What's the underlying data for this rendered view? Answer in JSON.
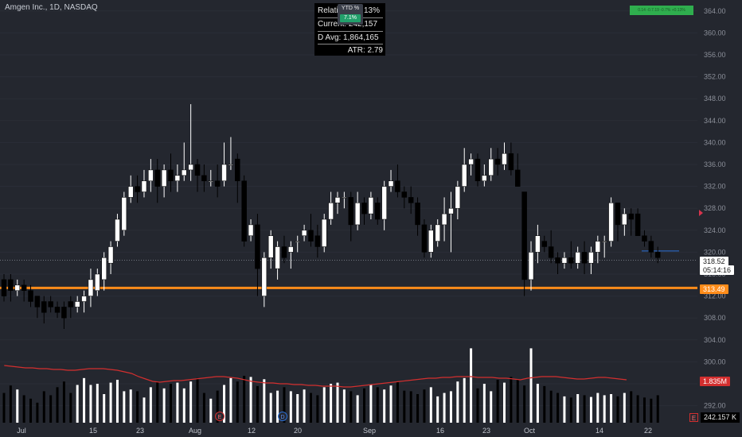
{
  "symbol": {
    "title": "Amgen Inc., 1D, NASDAQ"
  },
  "stats": {
    "relative": "Relati",
    "relative_value": "13%",
    "current": "Current: 242,157",
    "avg": "D Avg: 1,864,165",
    "atr": "ATR: 2.79"
  },
  "ytd": {
    "label": "YTD %",
    "value": "7.1%"
  },
  "perf_badge": "0.14  -0.7.19  -0.7%  +0.13%",
  "tags": {
    "last_price": "318.52",
    "countdown": "05:14:16",
    "orange_level": "313.49",
    "volume_avg": "1.835M",
    "volume_current": "242.157 K",
    "earnings_marker": "E",
    "dividend_marker": "D"
  },
  "colors": {
    "background": "#24272f",
    "bull_candle": "#ffffff",
    "bear_candle": "#000000",
    "orange_line": "#ff8c1a",
    "volume_ma": "#d32f2f",
    "axis_text": "#8b8f99",
    "accent_green": "#2fae4e"
  },
  "chart_data": {
    "type": "candlestick",
    "title": "Amgen Inc., 1D, NASDAQ",
    "ylim": [
      288,
      366
    ],
    "y_ticks": [
      364.0,
      360.0,
      356.0,
      352.0,
      348.0,
      344.0,
      340.0,
      336.0,
      332.0,
      328.0,
      324.0,
      320.0,
      316.0,
      312.0,
      308.0,
      304.0,
      300.0,
      296.0,
      292.0
    ],
    "x_labels": [
      "Jul",
      "15",
      "23",
      "Aug",
      "12",
      "20",
      "Sep",
      "16",
      "23",
      "Oct",
      "14",
      "22"
    ],
    "last_price": 318.52,
    "horizontal_level": 313.49,
    "candles": [
      [
        315,
        312,
        316,
        311
      ],
      [
        315,
        313,
        316,
        311
      ],
      [
        313,
        314,
        315,
        312
      ],
      [
        314,
        313,
        315,
        311
      ],
      [
        313,
        311,
        314,
        310
      ],
      [
        312,
        310,
        312,
        308
      ],
      [
        311,
        309,
        312,
        307
      ],
      [
        311,
        310,
        312,
        309
      ],
      [
        310,
        309,
        311,
        308
      ],
      [
        310,
        308,
        311,
        306
      ],
      [
        311,
        310,
        312,
        308
      ],
      [
        310,
        311,
        312,
        309
      ],
      [
        311,
        312,
        313,
        309
      ],
      [
        312,
        315,
        317,
        310
      ],
      [
        313,
        316,
        317,
        312
      ],
      [
        315,
        319,
        320,
        313
      ],
      [
        318,
        321,
        322,
        316
      ],
      [
        322,
        326,
        327,
        321
      ],
      [
        324,
        330,
        331,
        323
      ],
      [
        330,
        332,
        334,
        329
      ],
      [
        332,
        331,
        334,
        329
      ],
      [
        331,
        333,
        335,
        330
      ],
      [
        333,
        335,
        337,
        331
      ],
      [
        335,
        332,
        337,
        329
      ],
      [
        332,
        335,
        336,
        330
      ],
      [
        335,
        333,
        338,
        331
      ],
      [
        333,
        334,
        336,
        331
      ],
      [
        334,
        335,
        340,
        333
      ],
      [
        335,
        336,
        347,
        333
      ],
      [
        336,
        334,
        337,
        331
      ],
      [
        334,
        333,
        336,
        331
      ],
      [
        333,
        333,
        335,
        332
      ],
      [
        333,
        332,
        336,
        330
      ],
      [
        333,
        336,
        340,
        332
      ],
      [
        336,
        336,
        341,
        335
      ],
      [
        337,
        333,
        338,
        329
      ],
      [
        333,
        322,
        334,
        321
      ],
      [
        323,
        325,
        326,
        322
      ],
      [
        325,
        317,
        327,
        312
      ],
      [
        312,
        319,
        320,
        310
      ],
      [
        319,
        323,
        324,
        317
      ],
      [
        317,
        321,
        322,
        315
      ],
      [
        321,
        319,
        323,
        318
      ],
      [
        320,
        321,
        322,
        317
      ],
      [
        322,
        322,
        323,
        320
      ],
      [
        323,
        324,
        325,
        322
      ],
      [
        324,
        322,
        327,
        321
      ],
      [
        323,
        321,
        325,
        319
      ],
      [
        321,
        326,
        327,
        320
      ],
      [
        326,
        329,
        331,
        325
      ],
      [
        329,
        330,
        331,
        327
      ],
      [
        330,
        330,
        331,
        328
      ],
      [
        330,
        325,
        331,
        322
      ],
      [
        325,
        329,
        331,
        324
      ],
      [
        329,
        327,
        330,
        325
      ],
      [
        327,
        330,
        331,
        326
      ],
      [
        329,
        326,
        330,
        325
      ],
      [
        326,
        332,
        333,
        324
      ],
      [
        332,
        333,
        335,
        331
      ],
      [
        333,
        331,
        336,
        330
      ],
      [
        331,
        330,
        332,
        328
      ],
      [
        330,
        329,
        332,
        327
      ],
      [
        329,
        325,
        330,
        323
      ],
      [
        325,
        320,
        326,
        319
      ],
      [
        320,
        324,
        325,
        319
      ],
      [
        322,
        325,
        326,
        321
      ],
      [
        325,
        327,
        330,
        322
      ],
      [
        327,
        328,
        331,
        320
      ],
      [
        328,
        332,
        333,
        326
      ],
      [
        332,
        336,
        339,
        331
      ],
      [
        336,
        337,
        338,
        334
      ],
      [
        337,
        333,
        338,
        332
      ],
      [
        333,
        334,
        336,
        332
      ],
      [
        334,
        337,
        339,
        333
      ],
      [
        337,
        336,
        339,
        334
      ],
      [
        336,
        338,
        340,
        335
      ],
      [
        338,
        335,
        340,
        334
      ],
      [
        335,
        332,
        338,
        332
      ],
      [
        331,
        315,
        330,
        312
      ],
      [
        315,
        320,
        322,
        313
      ],
      [
        320,
        323,
        325,
        318
      ],
      [
        322,
        321,
        323,
        320
      ],
      [
        321,
        319,
        324,
        318
      ],
      [
        319,
        318,
        320,
        316
      ],
      [
        318,
        319,
        320,
        317
      ],
      [
        319,
        318,
        322,
        317
      ],
      [
        318,
        320,
        321,
        317
      ],
      [
        320,
        318,
        322,
        316
      ],
      [
        318,
        320,
        321,
        316
      ],
      [
        320,
        322,
        323,
        318
      ],
      [
        322,
        322,
        323,
        319
      ],
      [
        322,
        329,
        330,
        321
      ],
      [
        329,
        325,
        329,
        322
      ],
      [
        325,
        327,
        328,
        323
      ],
      [
        327,
        326,
        328,
        323
      ],
      [
        327,
        323,
        328,
        323
      ],
      [
        323,
        322,
        324,
        321
      ],
      [
        322,
        320,
        323,
        319
      ],
      [
        320,
        319,
        321,
        318
      ]
    ],
    "volume_ma_label": "1.835M",
    "volume_current": "242.157 K"
  }
}
